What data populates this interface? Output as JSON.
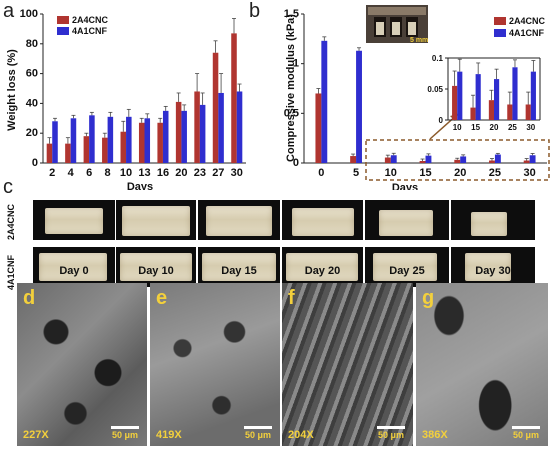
{
  "panels": {
    "a": "a",
    "b": "b",
    "c": "c",
    "d": "d",
    "e": "e",
    "f": "f",
    "g": "g"
  },
  "colors": {
    "cnc": "#b03530",
    "cnf": "#2f2ecf"
  },
  "chart_data": [
    {
      "type": "bar",
      "categories": [
        "2",
        "4",
        "6",
        "8",
        "10",
        "13",
        "16",
        "20",
        "23",
        "27",
        "30"
      ],
      "series": [
        {
          "name": "2A4CNC",
          "values": [
            13,
            13,
            18,
            17,
            21,
            27,
            27,
            41,
            48,
            74,
            87
          ],
          "errors": [
            4,
            4,
            2,
            3,
            7,
            3,
            3,
            6,
            12,
            8,
            10
          ]
        },
        {
          "name": "4A1CNF",
          "values": [
            28,
            30,
            32,
            31,
            31,
            30,
            35,
            35,
            39,
            47,
            48
          ],
          "errors": [
            2,
            2,
            2,
            3,
            5,
            3,
            3,
            4,
            8,
            13,
            5
          ]
        }
      ],
      "xlabel": "Days",
      "ylabel": "Weight loss (%)",
      "ylim": [
        0,
        100
      ],
      "yticks": [
        "0",
        "20",
        "40",
        "60",
        "80",
        "100"
      ],
      "legend": "top-left"
    },
    {
      "type": "bar",
      "categories": [
        "0",
        "5",
        "10",
        "15",
        "20",
        "25",
        "30"
      ],
      "series": [
        {
          "name": "2A4CNC",
          "values": [
            0.7,
            0.07,
            0.055,
            0.02,
            0.032,
            0.025,
            0.025
          ],
          "errors": [
            0.05,
            0.02,
            0.024,
            0.02,
            0.016,
            0.02,
            0.02
          ]
        },
        {
          "name": "4A1CNF",
          "values": [
            1.23,
            1.13,
            0.078,
            0.074,
            0.066,
            0.085,
            0.078
          ],
          "errors": [
            0.04,
            0.03,
            0.02,
            0.018,
            0.016,
            0.012,
            0.018
          ]
        }
      ],
      "xlabel": "Days",
      "ylabel": "Compressive modulus (kPa)",
      "ylim": [
        0,
        1.5
      ],
      "yticks": [
        "0",
        "0.5",
        "1",
        "1.5"
      ],
      "legend": "top-right",
      "inset": {
        "categories": [
          "10",
          "15",
          "20",
          "25",
          "30"
        ],
        "ylim": [
          0,
          0.1
        ],
        "yticks": [
          "0",
          "0.05",
          "0.1"
        ]
      },
      "photo_scale": "5 mm"
    }
  ],
  "panel_c": {
    "rows": [
      "2A4CNC",
      "4A1CNF"
    ],
    "days": [
      "Day 0",
      "Day 10",
      "Day 15",
      "Day 20",
      "Day 25",
      "Day 30"
    ]
  },
  "sem": [
    {
      "letter": "d",
      "mag": "227X",
      "scale": "50 μm"
    },
    {
      "letter": "e",
      "mag": "419X",
      "scale": "50 μm"
    },
    {
      "letter": "f",
      "mag": "204X",
      "scale": "50 μm"
    },
    {
      "letter": "g",
      "mag": "386X",
      "scale": "50 μm"
    }
  ]
}
